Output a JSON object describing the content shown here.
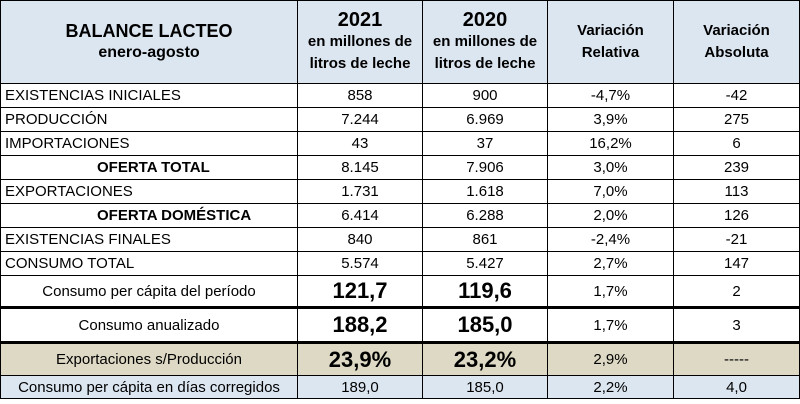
{
  "header": {
    "title": "BALANCE LACTEO",
    "subtitle": "enero-agosto",
    "columns": [
      {
        "year": "2021",
        "lines": [
          "en millones de",
          "litros de leche"
        ]
      },
      {
        "year": "2020",
        "lines": [
          "en millones de",
          "litros de leche"
        ]
      },
      {
        "lines": [
          "Variación",
          "Relativa"
        ]
      },
      {
        "lines": [
          "Variación",
          "Absoluta"
        ]
      }
    ]
  },
  "table": {
    "rows": [
      [
        "EXISTENCIAS  INICIALES",
        "858",
        "900",
        "-4,7%",
        "-42"
      ],
      [
        "PRODUCCIÓN",
        "7.244",
        "6.969",
        "3,9%",
        "275"
      ],
      [
        "IMPORTACIONES",
        "43",
        "37",
        "16,2%",
        "6"
      ],
      [
        "OFERTA TOTAL",
        "8.145",
        "7.906",
        "3,0%",
        "239"
      ],
      [
        "EXPORTACIONES",
        "1.731",
        "1.618",
        "7,0%",
        "113"
      ],
      [
        "OFERTA DOMÉSTICA",
        "6.414",
        "6.288",
        "2,0%",
        "126"
      ],
      [
        "EXISTENCIAS FINALES",
        "840",
        "861",
        "-2,4%",
        "-21"
      ],
      [
        "CONSUMO TOTAL",
        "5.574",
        "5.427",
        "2,7%",
        "147"
      ],
      [
        "Consumo per cápita del período",
        "121,7",
        "119,6",
        "1,7%",
        "2"
      ],
      [
        "Consumo anualizado",
        "188,2",
        "185,0",
        "1,7%",
        "3"
      ],
      [
        "Exportaciones s/Producción",
        "23,9%",
        "23,2%",
        "2,9%",
        "-----"
      ],
      [
        "Consumo per cápita en días corregidos",
        "189,0",
        "185,0",
        "2,2%",
        "4,0"
      ]
    ]
  }
}
